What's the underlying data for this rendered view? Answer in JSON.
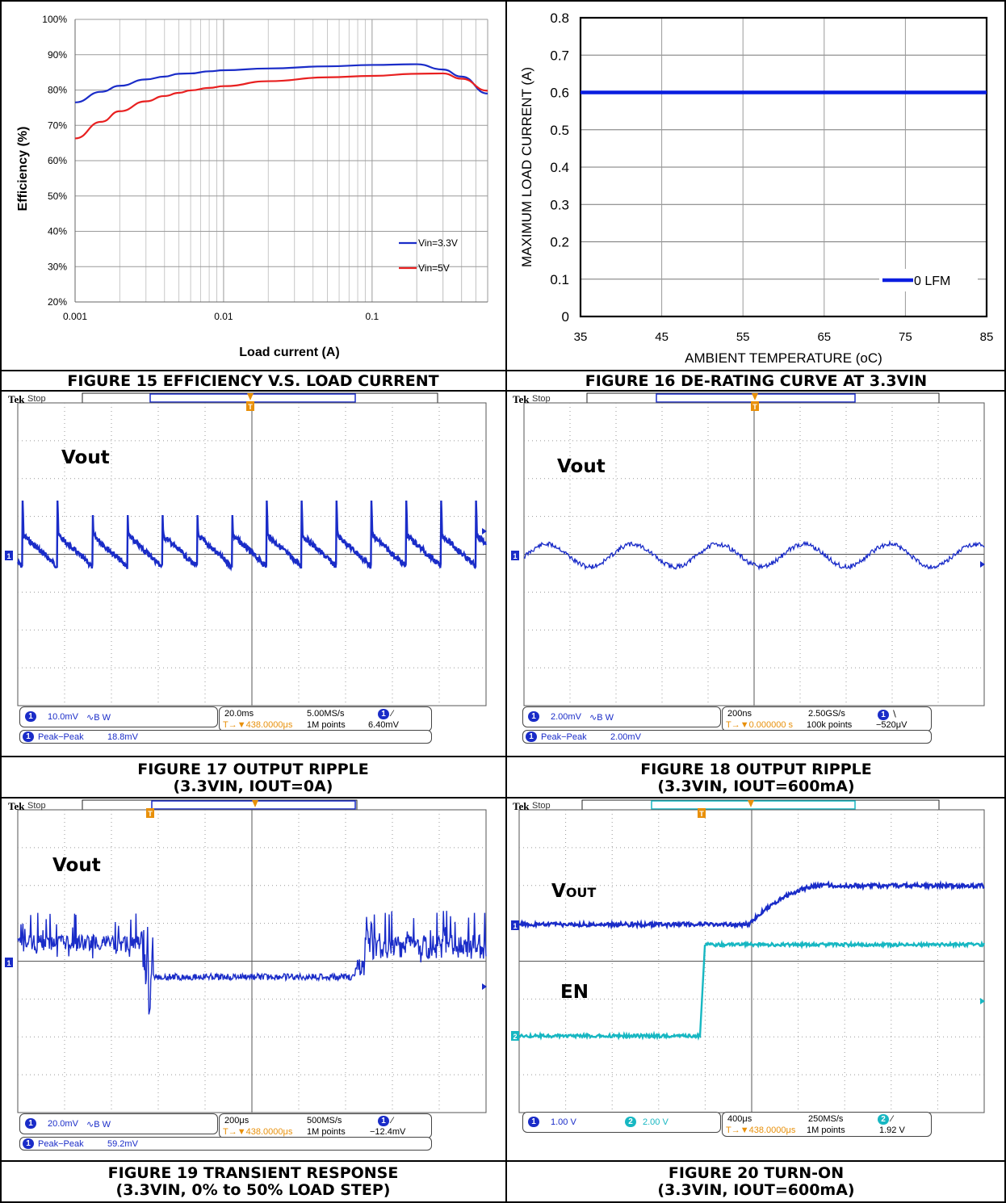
{
  "figures": {
    "fig15": {
      "caption": "FIGURE 15 EFFICIENCY V.S. LOAD CURRENT"
    },
    "fig16": {
      "caption": "FIGURE 16 DE-RATING CURVE AT 3.3VIN"
    },
    "fig17": {
      "caption1": "FIGURE 17 OUTPUT RIPPLE",
      "caption2": "(3.3VIN, IOUT=0A)",
      "trace_label": "Vout",
      "ch_scale": "10.0mV",
      "timebase": "20.0ms",
      "sample_rate": "5.00MS/s",
      "trigger_pos": "▼438.0000μs",
      "points": "1M points",
      "trigger_level": "6.40mV",
      "meas_name": "Peak−Peak",
      "meas_value": "18.8mV"
    },
    "fig18": {
      "caption1": "FIGURE 18 OUTPUT RIPPLE",
      "caption2": "(3.3VIN, IOUT=600mA)",
      "trace_label": "Vout",
      "ch_scale": "2.00mV",
      "timebase": "200ns",
      "sample_rate": "2.50GS/s",
      "trigger_pos": "▼0.000000 s",
      "points": "100k points",
      "trigger_level": "−520μV",
      "meas_name": "Peak−Peak",
      "meas_value": "2.00mV"
    },
    "fig19": {
      "caption1": "FIGURE 19 TRANSIENT RESPONSE",
      "caption2": "(3.3VIN, 0% to 50% LOAD STEP)",
      "trace_label": "Vout",
      "ch_scale": "20.0mV",
      "timebase": "200μs",
      "sample_rate": "500MS/s",
      "trigger_pos": "▼438.0000μs",
      "points": "1M points",
      "trigger_level": "−12.4mV",
      "meas_name": "Peak−Peak",
      "meas_value": "59.2mV"
    },
    "fig20": {
      "caption1": "FIGURE 20 TURN-ON",
      "caption2": "(3.3VIN, IOUT=600mA)",
      "trace_label_main": "V",
      "trace_label_sub": "OUT",
      "en_label": "EN",
      "ch1_scale": "1.00 V",
      "ch2_scale": "2.00 V",
      "timebase": "400μs",
      "sample_rate": "250MS/s",
      "trigger_pos": "▼438.0000μs",
      "points": "1M points",
      "trigger_level": "1.92 V"
    }
  },
  "scope": {
    "brand": "Tek",
    "state": "Stop",
    "ch1": "1",
    "ch2": "2",
    "trig_mark": "T",
    "coupling": "∿B W"
  },
  "colors": {
    "blue": "#1a2cc8",
    "red": "#e82020",
    "line16": "#0a1ee0",
    "ch1": "#1a2cc8",
    "ch2": "#17b7c2",
    "trig": "#e8900a"
  },
  "chart_data": [
    {
      "type": "line",
      "xlabel": "Load current (A)",
      "ylabel": "Efficiency (%)",
      "xscale": "log",
      "xlim": [
        0.001,
        0.6
      ],
      "ylim": [
        20,
        100
      ],
      "xticks": [
        "0.001",
        "0.01",
        "0.1"
      ],
      "yticks": [
        "20%",
        "30%",
        "40%",
        "50%",
        "60%",
        "70%",
        "80%",
        "90%",
        "100%"
      ],
      "legend_position": "bottom-right",
      "grid": true,
      "series": [
        {
          "name": "Vin=3.3V",
          "color": "#1a2cc8",
          "x": [
            0.001,
            0.0015,
            0.002,
            0.003,
            0.004,
            0.005,
            0.006,
            0.008,
            0.01,
            0.02,
            0.05,
            0.1,
            0.2,
            0.3,
            0.4,
            0.6
          ],
          "y": [
            76.5,
            79.5,
            81.2,
            83,
            83.8,
            84.6,
            84.7,
            85.3,
            85.6,
            86.1,
            86.7,
            87.1,
            87.3,
            85.8,
            83.8,
            79
          ]
        },
        {
          "name": "Vin=5V",
          "color": "#e82020",
          "x": [
            0.001,
            0.0015,
            0.002,
            0.003,
            0.004,
            0.005,
            0.006,
            0.008,
            0.01,
            0.02,
            0.05,
            0.1,
            0.2,
            0.3,
            0.4,
            0.6
          ],
          "y": [
            66.3,
            71,
            74,
            76.8,
            78.3,
            79.2,
            79.9,
            80.6,
            81.1,
            82.5,
            83.6,
            84,
            84.6,
            84.7,
            83.2,
            79.8
          ]
        }
      ]
    },
    {
      "type": "line",
      "xlabel": "AMBIENT TEMPERATURE (oC)",
      "ylabel": "MAXIMUM LOAD CURRENT (A)",
      "xlim": [
        35,
        85
      ],
      "ylim": [
        0,
        0.8
      ],
      "xticks": [
        "35",
        "45",
        "55",
        "65",
        "75",
        "85"
      ],
      "yticks": [
        "0",
        "0.1",
        "0.2",
        "0.3",
        "0.4",
        "0.5",
        "0.6",
        "0.7",
        "0.8"
      ],
      "legend_position": "bottom-right",
      "grid": true,
      "series": [
        {
          "name": "0 LFM",
          "color": "#0a1ee0",
          "x": [
            35,
            85
          ],
          "y": [
            0.6,
            0.6
          ]
        }
      ]
    }
  ]
}
